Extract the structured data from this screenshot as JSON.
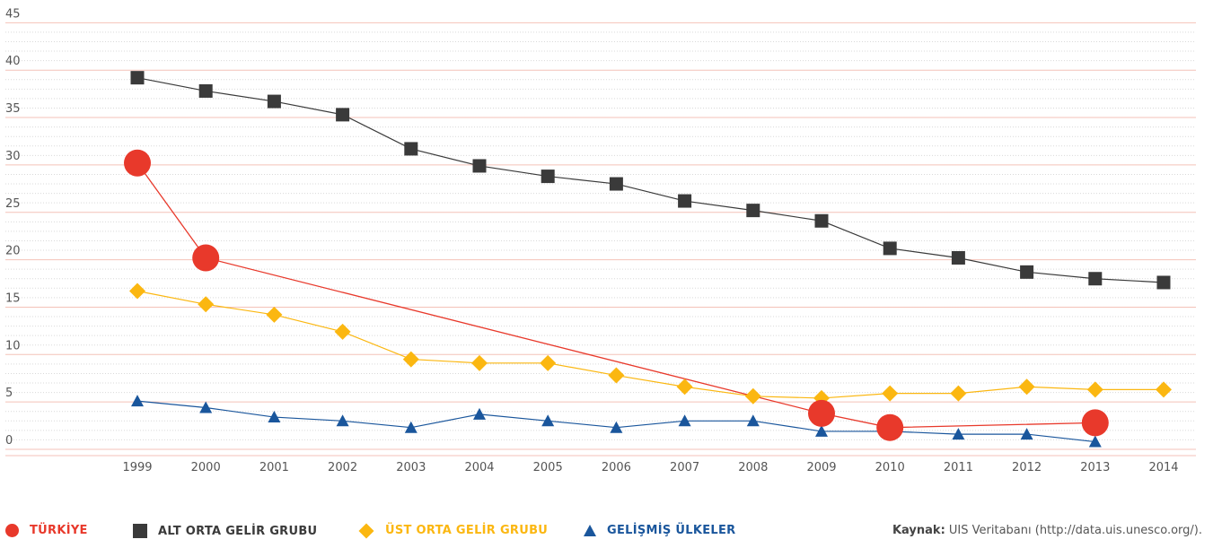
{
  "chart_data": {
    "type": "line",
    "title": "",
    "xlabel": "",
    "ylabel": "",
    "x": [
      "1999",
      "2000",
      "2001",
      "2002",
      "2003",
      "2004",
      "2005",
      "2006",
      "2007",
      "2008",
      "2009",
      "2010",
      "2011",
      "2012",
      "2013",
      "2014"
    ],
    "yticks": [
      "0",
      "5",
      "10",
      "15",
      "20",
      "25",
      "30",
      "35",
      "40",
      "45"
    ],
    "ylim": [
      0,
      45
    ],
    "grid": true,
    "legend_position": "bottom",
    "series": [
      {
        "name": "TÜRKİYE",
        "color": "#e8392b",
        "marker": "circle",
        "values": [
          30.2,
          20.2,
          null,
          null,
          null,
          null,
          null,
          null,
          null,
          null,
          3.8,
          2.3,
          null,
          null,
          2.8,
          null
        ]
      },
      {
        "name": "ALT ORTA GELİR GRUBU",
        "color": "#3a3a3a",
        "marker": "square",
        "values": [
          39.2,
          37.8,
          36.7,
          35.3,
          31.7,
          29.9,
          28.8,
          28.0,
          26.2,
          25.2,
          24.1,
          21.2,
          20.2,
          18.7,
          18.0,
          17.6
        ]
      },
      {
        "name": "ÜST ORTA GELİR GRUBU",
        "color": "#fbb711",
        "marker": "diamond",
        "values": [
          16.7,
          15.3,
          14.2,
          12.4,
          9.5,
          9.1,
          9.1,
          7.8,
          6.6,
          5.6,
          5.4,
          5.9,
          5.9,
          6.6,
          6.3,
          6.3
        ]
      },
      {
        "name": "GELİŞMİŞ ÜLKELER",
        "color": "#1a569c",
        "marker": "triangle",
        "values": [
          5.1,
          4.4,
          3.4,
          3.0,
          2.3,
          3.7,
          3.0,
          2.3,
          3.0,
          3.0,
          1.9,
          1.9,
          1.6,
          1.6,
          0.8,
          null
        ]
      }
    ]
  },
  "source": {
    "label": "Kaynak:",
    "text": "UIS Veritabanı (http://data.uis.unesco.org/)."
  }
}
